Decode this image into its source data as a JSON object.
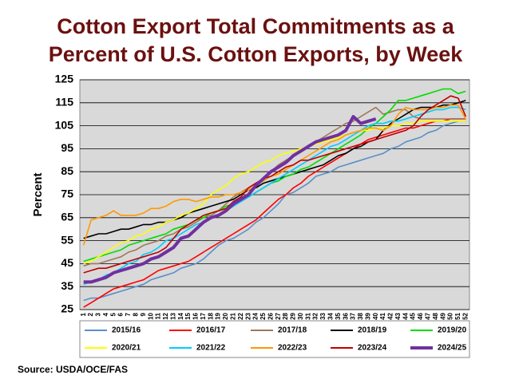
{
  "chart_data": {
    "type": "line",
    "title": [
      "Cotton Export Total Commitments as a",
      "Percent of U.S. Cotton Exports, by Week"
    ],
    "y_label": "Percent",
    "source": "Source:  USDA/OCE/FAS",
    "grid": true,
    "ylim": [
      25,
      125
    ],
    "yticks": [
      25,
      35,
      45,
      55,
      65,
      75,
      85,
      95,
      105,
      115,
      125
    ],
    "categories": [
      "1",
      "2",
      "3",
      "4",
      "5",
      "6",
      "7",
      "8",
      "9",
      "10",
      "11",
      "12",
      "13",
      "14",
      "15",
      "16",
      "17",
      "18",
      "19",
      "20",
      "21",
      "22",
      "23",
      "24",
      "25",
      "26",
      "27",
      "28",
      "29",
      "30",
      "31",
      "32",
      "33",
      "34",
      "35",
      "36",
      "37",
      "38",
      "39",
      "40",
      "41",
      "42",
      "43",
      "44",
      "45",
      "46",
      "47",
      "48",
      "49",
      "50",
      "51",
      "52"
    ],
    "series": [
      {
        "name": "2015/16",
        "color": "#5b8fc9",
        "values": [
          29,
          30,
          30,
          31,
          32,
          33,
          34,
          35,
          36,
          38,
          39,
          40,
          41,
          43,
          44,
          45,
          47,
          50,
          53,
          55,
          56,
          58,
          60,
          63,
          65,
          68,
          71,
          75,
          76,
          78,
          80,
          83,
          84,
          85,
          87,
          88,
          89,
          90,
          91,
          92,
          93,
          95,
          96,
          98,
          99,
          100,
          102,
          103,
          105,
          106,
          107,
          107
        ]
      },
      {
        "name": "2016/17",
        "color": "#ff0000",
        "values": [
          26,
          28,
          30,
          32,
          34,
          35,
          36,
          37,
          38,
          40,
          42,
          43,
          44,
          45,
          46,
          48,
          50,
          52,
          54,
          56,
          58,
          60,
          62,
          64,
          67,
          70,
          73,
          75,
          78,
          80,
          83,
          85,
          87,
          89,
          91,
          93,
          95,
          97,
          99,
          100,
          101,
          102,
          103,
          104,
          104,
          105,
          106,
          107,
          107,
          108,
          108,
          108
        ]
      },
      {
        "name": "2017/18",
        "color": "#a07858",
        "values": [
          44,
          45,
          45,
          46,
          47,
          48,
          50,
          51,
          53,
          54,
          55,
          57,
          58,
          60,
          61,
          63,
          65,
          66,
          68,
          71,
          74,
          76,
          78,
          80,
          82,
          85,
          88,
          90,
          92,
          94,
          96,
          98,
          100,
          102,
          104,
          106,
          107,
          109,
          111,
          113,
          110,
          111,
          112,
          112,
          109,
          108,
          108,
          108,
          108,
          108,
          108,
          108
        ]
      },
      {
        "name": "2018/19",
        "color": "#000000",
        "values": [
          56,
          57,
          58,
          58,
          59,
          60,
          60,
          61,
          62,
          62,
          63,
          63,
          64,
          65,
          67,
          68,
          69,
          70,
          71,
          72,
          73,
          75,
          77,
          78,
          80,
          81,
          82,
          83,
          84,
          85,
          86,
          87,
          88,
          90,
          92,
          93,
          95,
          96,
          98,
          99,
          103,
          106,
          108,
          110,
          112,
          113,
          113,
          113,
          114,
          114,
          115,
          116
        ]
      },
      {
        "name": "2019/20",
        "color": "#00dd00",
        "values": [
          46,
          47,
          48,
          49,
          50,
          51,
          53,
          54,
          55,
          56,
          57,
          58,
          60,
          61,
          62,
          64,
          65,
          67,
          68,
          70,
          71,
          72,
          74,
          76,
          78,
          80,
          81,
          83,
          84,
          86,
          87,
          89,
          91,
          93,
          95,
          97,
          99,
          101,
          104,
          106,
          109,
          112,
          116,
          116,
          117,
          118,
          119,
          120,
          121,
          121,
          119,
          120
        ]
      },
      {
        "name": "2020/21",
        "color": "#ffff00",
        "values": [
          45,
          46,
          48,
          50,
          52,
          54,
          55,
          57,
          58,
          60,
          61,
          63,
          64,
          66,
          67,
          69,
          71,
          75,
          77,
          79,
          82,
          84,
          85,
          87,
          89,
          90,
          92,
          93,
          94,
          95,
          96,
          97,
          98,
          99,
          100,
          101,
          102,
          103,
          103,
          104,
          104,
          105,
          105,
          106,
          106,
          107,
          107,
          107,
          107,
          107,
          107,
          107
        ]
      },
      {
        "name": "2021/22",
        "color": "#00ccff",
        "values": [
          36,
          37,
          38,
          40,
          41,
          43,
          45,
          46,
          49,
          50,
          52,
          55,
          56,
          58,
          60,
          62,
          63,
          65,
          66,
          68,
          70,
          72,
          74,
          76,
          78,
          80,
          82,
          84,
          86,
          88,
          90,
          92,
          94,
          96,
          97,
          99,
          101,
          103,
          105,
          106,
          106,
          107,
          107,
          108,
          109,
          110,
          111,
          112,
          112,
          113,
          113,
          112
        ]
      },
      {
        "name": "2022/23",
        "color": "#ff9900",
        "values": [
          53,
          64,
          65,
          66,
          68,
          66,
          66,
          66,
          67,
          69,
          69,
          70,
          72,
          73,
          73,
          72,
          73,
          74,
          74,
          75,
          75,
          76,
          77,
          79,
          81,
          83,
          84,
          86,
          88,
          90,
          92,
          94,
          96,
          98,
          99,
          101,
          102,
          103,
          104,
          104,
          103,
          105,
          110,
          113,
          112,
          112,
          112,
          113,
          113,
          114,
          114,
          108
        ]
      },
      {
        "name": "2023/24",
        "color": "#c00000",
        "values": [
          41,
          42,
          43,
          43,
          44,
          45,
          46,
          47,
          48,
          49,
          50,
          52,
          56,
          60,
          62,
          64,
          66,
          67,
          68,
          69,
          72,
          74,
          78,
          80,
          82,
          83,
          85,
          87,
          88,
          90,
          90,
          91,
          92,
          93,
          94,
          95,
          96,
          97,
          98,
          99,
          100,
          101,
          102,
          103,
          105,
          109,
          112,
          114,
          116,
          118,
          117,
          109
        ]
      },
      {
        "name": "2024/25",
        "color": "#7030a0",
        "width": 4,
        "values": [
          37,
          37,
          38,
          39,
          41,
          42,
          43,
          44,
          45,
          47,
          48,
          50,
          52,
          56,
          57,
          60,
          63,
          65,
          66,
          68,
          71,
          73,
          75,
          79,
          82,
          85,
          87,
          89,
          92,
          94,
          96,
          98,
          99,
          100,
          101,
          103,
          109,
          106,
          107,
          108,
          null,
          null,
          null,
          null,
          null,
          null,
          null,
          null,
          null,
          null,
          null,
          null
        ]
      }
    ]
  }
}
